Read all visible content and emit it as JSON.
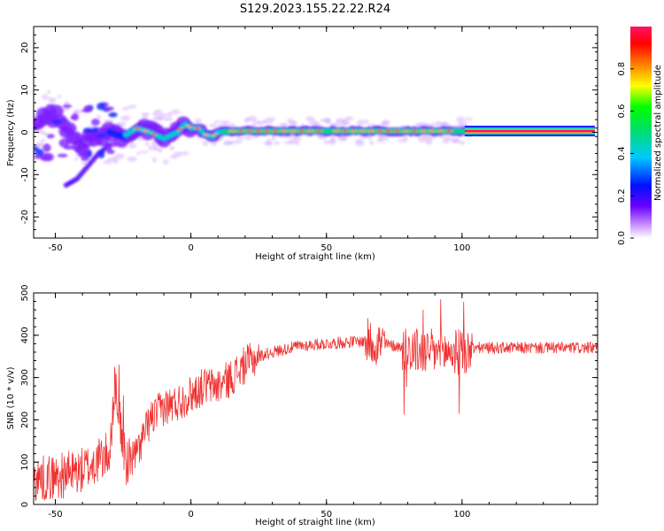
{
  "title": "S129.2023.155.22.22.R24",
  "chart_data": [
    {
      "type": "heatmap",
      "xlabel": "Height of straight line (km)",
      "ylabel": "Frequency (Hz)",
      "xlim": [
        -58,
        150
      ],
      "ylim": [
        -25,
        25
      ],
      "xticks": [
        -50,
        0,
        50,
        100
      ],
      "yticks": [
        -20,
        -10,
        0,
        10,
        20
      ],
      "colorbar": {
        "label": "Normalized spectral amplitude",
        "range": [
          0,
          1
        ],
        "ticks": [
          0.0,
          0.2,
          0.4,
          0.6,
          0.8
        ],
        "colormap": [
          "#ffffff",
          "#c77dff",
          "#5a00ff",
          "#0000ff",
          "#00c8ff",
          "#00e060",
          "#00ff00",
          "#ffff00",
          "#ff8000",
          "#ff0000",
          "#ff1060"
        ]
      },
      "ridge": {
        "x": [
          -58,
          -50,
          -45,
          -40,
          -35,
          -30,
          -25,
          -20,
          -15,
          -10,
          -5,
          -2,
          0,
          3,
          5,
          8,
          10,
          15,
          20,
          30,
          40,
          50,
          60,
          70,
          80,
          90,
          100,
          110,
          120,
          130,
          140,
          149
        ],
        "y": [
          3,
          4,
          1,
          -3,
          -1,
          0,
          -1,
          1,
          0,
          -1.5,
          0,
          2,
          1,
          1,
          -0.5,
          -1,
          0,
          0.3,
          0.3,
          0.3,
          0.3,
          0.3,
          0.3,
          0.3,
          0.3,
          0.3,
          0.3,
          0.3,
          0.3,
          0.3,
          0.3,
          0.3
        ]
      },
      "branch": {
        "x": [
          -46,
          -42,
          -38,
          -34,
          -30
        ],
        "y": [
          -12.5,
          -11,
          -8,
          -5,
          -3
        ]
      }
    },
    {
      "type": "line",
      "xlabel": "Height of straight line (km)",
      "ylabel": "SNR (10 * v/v)",
      "xlim": [
        -58,
        150
      ],
      "ylim": [
        0,
        500
      ],
      "xticks": [
        -50,
        0,
        50,
        100
      ],
      "yticks": [
        0,
        100,
        200,
        300,
        400,
        500
      ],
      "color": "#ee3333",
      "series": [
        {
          "x": [
            -58,
            -50,
            -40,
            -30,
            -28,
            -26,
            -24,
            -20,
            -15,
            -10,
            -5,
            0,
            5,
            10,
            15,
            20,
            25,
            30,
            40,
            50,
            60,
            65,
            70,
            75,
            80,
            85,
            90,
            95,
            100,
            105,
            110,
            120,
            130,
            140,
            150
          ],
          "values": [
            60,
            65,
            80,
            120,
            300,
            180,
            100,
            120,
            200,
            230,
            240,
            260,
            280,
            280,
            300,
            330,
            350,
            360,
            375,
            380,
            385,
            385,
            380,
            375,
            370,
            360,
            360,
            360,
            360,
            370,
            370,
            370,
            370,
            370,
            370
          ]
        }
      ]
    }
  ]
}
